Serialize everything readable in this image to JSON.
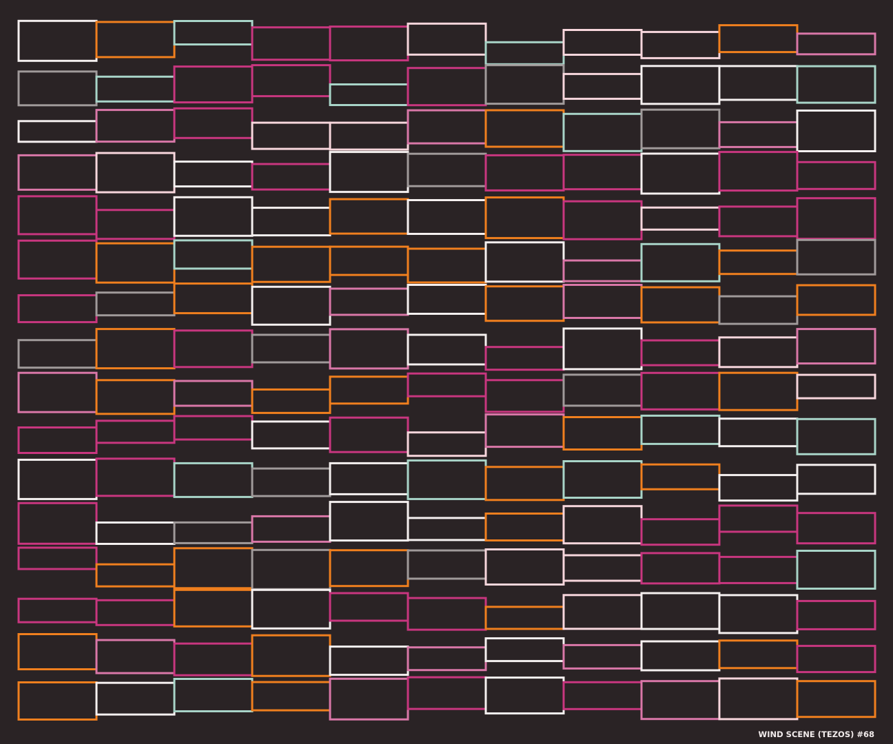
{
  "caption": "WIND SCENE (TEZOS) #68"
}
